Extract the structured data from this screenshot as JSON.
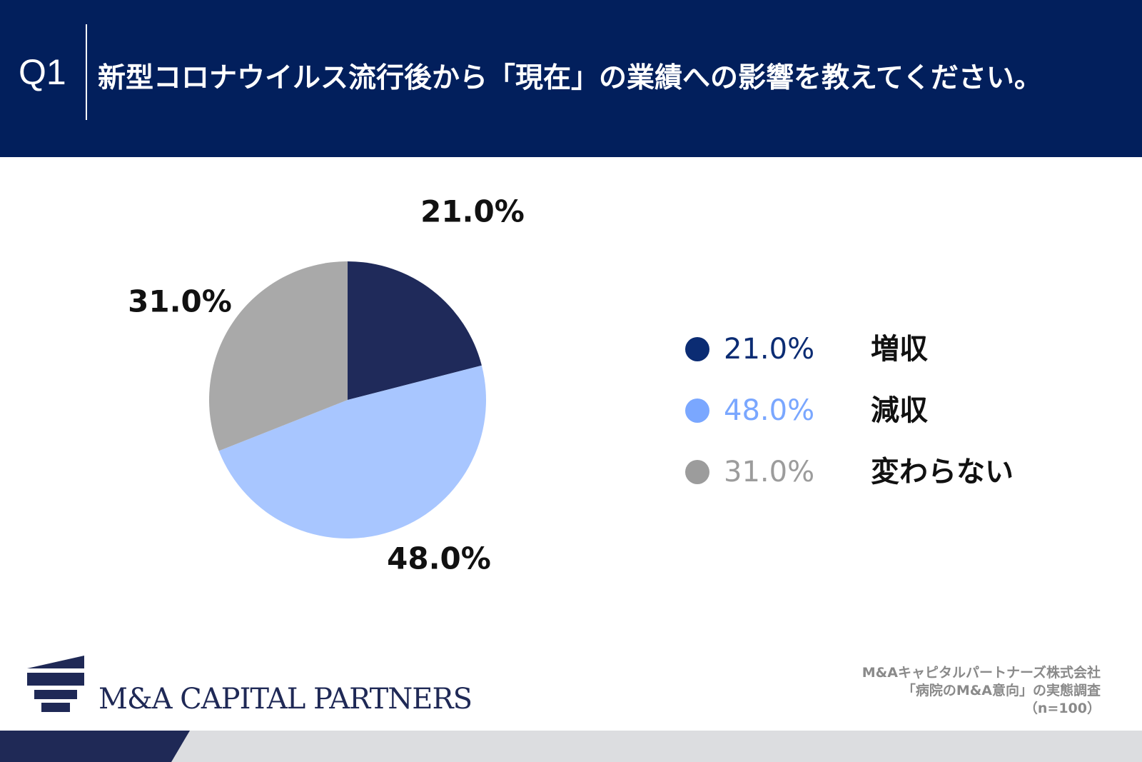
{
  "header": {
    "q_number": "Q1",
    "question": "新型コロナウイルス流行後から「現在」の業績への影響を教えてください。"
  },
  "chart_data": {
    "type": "pie",
    "unit": "%",
    "categories": [
      "増収",
      "減収",
      "変わらない"
    ],
    "values": [
      21.0,
      48.0,
      31.0
    ],
    "value_labels": [
      "21.0%",
      "48.0%",
      "31.0%"
    ],
    "colors": [
      "#1f2a5a",
      "#a8c6ff",
      "#a9a9a9"
    ],
    "legend": {
      "placement": "right",
      "dot_colors": [
        "#0b2c73",
        "#7aa7ff",
        "#9c9c9c"
      ],
      "text_colors": [
        "#0b2c73",
        "#7aa7ff",
        "#9c9c9c"
      ]
    },
    "start_angle_deg": 0,
    "direction": "clockwise"
  },
  "logo": {
    "name": "M&A CAPITAL PARTNERS"
  },
  "source": {
    "line1": "M&Aキャピタルパートナーズ株式会社",
    "line2": "「病院のM&A意向」の実態調査",
    "line3": "（n=100）"
  },
  "colors": {
    "header_bg": "#021f5c",
    "footer_dark": "#1f2956",
    "footer_light": "#dcdde0"
  }
}
